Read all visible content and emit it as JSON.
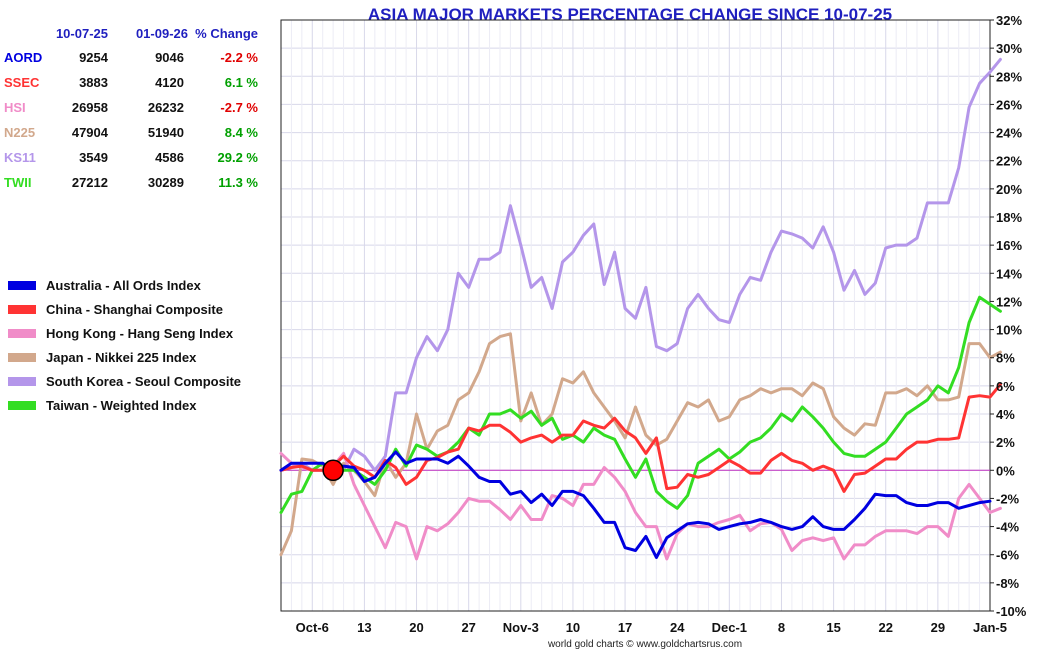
{
  "chart_data": {
    "type": "line",
    "title": "ASIA MAJOR MARKETS PERCENTAGE CHANGE SINCE 10-07-25",
    "credit": "world gold charts © www.goldchartsrus.com",
    "ylim": [
      -10,
      32
    ],
    "y_tick_labels": [
      "-10%",
      "-8%",
      "-6%",
      "-4%",
      "-2%",
      "0%",
      "2%",
      "4%",
      "6%",
      "8%",
      "10%",
      "12%",
      "14%",
      "16%",
      "18%",
      "20%",
      "22%",
      "24%",
      "26%",
      "28%",
      "30%",
      "32%"
    ],
    "x_tick_labels": [
      "Oct-6",
      "13",
      "20",
      "27",
      "Nov-3",
      "10",
      "17",
      "24",
      "Dec-1",
      "8",
      "15",
      "22",
      "29",
      "Jan-5"
    ],
    "grid": true,
    "zero_line_color": "#c030c0",
    "marker": {
      "x": 5,
      "y": 0,
      "color": "#ff0000"
    },
    "table": {
      "headers": [
        "10-07-25",
        "01-09-26",
        "% Change"
      ],
      "rows": [
        {
          "label": "AORD",
          "start": "9254",
          "end": "9046",
          "change": "-2.2 %",
          "color": "#0000e0",
          "change_color": "#e00000"
        },
        {
          "label": "SSEC",
          "start": "3883",
          "end": "4120",
          "change": "6.1 %",
          "color": "#ff3333",
          "change_color": "#00a000"
        },
        {
          "label": "HSI",
          "start": "26958",
          "end": "26232",
          "change": "-2.7 %",
          "color": "#f08cc8",
          "change_color": "#e00000"
        },
        {
          "label": "N225",
          "start": "47904",
          "end": "51940",
          "change": "8.4 %",
          "color": "#d2a88c",
          "change_color": "#00a000"
        },
        {
          "label": "KS11",
          "start": "3549",
          "end": "4586",
          "change": "29.2 %",
          "color": "#b496ea",
          "change_color": "#00a000"
        },
        {
          "label": "TWII",
          "start": "27212",
          "end": "30289",
          "change": "11.3 %",
          "color": "#33dd22",
          "change_color": "#00a000"
        }
      ]
    },
    "legend_position": "left",
    "series": [
      {
        "name": "Australia - All Ords Index",
        "color": "#0000e0",
        "values": [
          0,
          0.5,
          0.5,
          0.5,
          0.5,
          0,
          0.3,
          0.2,
          -0.8,
          -0.5,
          0.5,
          1.3,
          0.5,
          0.8,
          0.8,
          0.8,
          0.5,
          1.0,
          0.3,
          -0.5,
          -0.8,
          -0.8,
          -1.7,
          -1.5,
          -2.3,
          -1.7,
          -2.5,
          -1.5,
          -1.5,
          -1.8,
          -2.7,
          -3.7,
          -3.7,
          -5.5,
          -5.7,
          -4.7,
          -6.2,
          -4.8,
          -4.3,
          -3.8,
          -3.7,
          -3.8,
          -4.2,
          -4.0,
          -3.8,
          -3.7,
          -3.5,
          -3.7,
          -4.0,
          -4.2,
          -4.0,
          -3.3,
          -4.0,
          -4.2,
          -4.2,
          -3.5,
          -2.7,
          -1.7,
          -1.8,
          -1.8,
          -2.3,
          -2.5,
          -2.5,
          -2.3,
          -2.3,
          -2.7,
          -2.5,
          -2.3,
          -2.2
        ]
      },
      {
        "name": "China - Shanghai Composite",
        "color": "#ff3333",
        "values": [
          0,
          0.2,
          0.3,
          0,
          0,
          0.3,
          1.0,
          0.3,
          0,
          -0.5,
          0.7,
          0.2,
          -1.0,
          -0.5,
          0.7,
          0.9,
          1.3,
          1.5,
          3.0,
          2.8,
          3.2,
          3.2,
          2.7,
          2.0,
          2.3,
          2.5,
          2.0,
          2.5,
          2.5,
          3.5,
          3.2,
          3.0,
          3.7,
          2.8,
          2.3,
          1.2,
          2.3,
          -1.3,
          -1.2,
          -0.3,
          -0.5,
          -0.3,
          0.2,
          0.7,
          0.3,
          -0.2,
          -0.2,
          0.7,
          1.2,
          0.7,
          0.5,
          0,
          0.3,
          0,
          -1.5,
          -0.3,
          -0.2,
          0.3,
          0.8,
          0.8,
          1.5,
          2.0,
          2.0,
          2.2,
          2.2,
          2.3,
          5.2,
          5.3,
          5.2,
          6.1
        ]
      },
      {
        "name": "Hong Kong - Hang Seng Index",
        "color": "#f08cc8",
        "values": [
          1.2,
          0.5,
          0.2,
          0,
          0,
          0.3,
          1.2,
          -1.0,
          -2.5,
          -4.0,
          -5.5,
          -3.7,
          -4.0,
          -6.3,
          -4.0,
          -4.3,
          -3.8,
          -3.0,
          -2.0,
          -2.2,
          -2.2,
          -2.8,
          -3.5,
          -2.5,
          -3.5,
          -3.5,
          -1.8,
          -2.0,
          -2.5,
          -1.0,
          -1.0,
          0.2,
          -0.5,
          -1.5,
          -3.0,
          -4.0,
          -4.0,
          -6.3,
          -4.5,
          -3.8,
          -4.0,
          -4.0,
          -3.7,
          -3.5,
          -3.2,
          -4.3,
          -3.8,
          -3.7,
          -4.2,
          -5.7,
          -5.0,
          -4.8,
          -5.0,
          -4.8,
          -6.3,
          -5.3,
          -5.3,
          -4.7,
          -4.3,
          -4.3,
          -4.3,
          -4.5,
          -4.0,
          -4.0,
          -4.7,
          -2.0,
          -1.0,
          -2.0,
          -3.0,
          -2.7
        ]
      },
      {
        "name": "Japan - Nikkei 225 Index",
        "color": "#d2a88c",
        "values": [
          -6,
          -4.3,
          0.8,
          0.7,
          0.3,
          -1.0,
          0.5,
          0,
          -0.8,
          -1.8,
          0.7,
          -0.5,
          0.5,
          4.0,
          1.5,
          2.8,
          3.2,
          5.0,
          5.5,
          7.0,
          9.0,
          9.5,
          9.7,
          3.5,
          5.5,
          3.2,
          4.0,
          6.5,
          6.2,
          7.0,
          5.5,
          4.5,
          3.5,
          2.3,
          4.5,
          2.5,
          1.8,
          2.2,
          3.5,
          4.8,
          4.5,
          5.0,
          3.5,
          3.8,
          5.0,
          5.3,
          5.8,
          5.5,
          5.8,
          5.8,
          5.3,
          6.2,
          5.8,
          3.8,
          3.0,
          2.5,
          3.3,
          3.2,
          5.5,
          5.5,
          5.8,
          5.3,
          6.0,
          5.0,
          5.0,
          5.2,
          9.0,
          9.0,
          8.0,
          8.4
        ]
      },
      {
        "name": "South Korea - Seoul Composite",
        "color": "#b496ea",
        "values": [
          0,
          0.2,
          0.5,
          0,
          0,
          0.5,
          0,
          1.5,
          1.0,
          0,
          1.0,
          5.5,
          5.5,
          8.0,
          9.5,
          8.5,
          10.0,
          14.0,
          13.0,
          15.0,
          15.0,
          15.5,
          18.8,
          16.0,
          13.0,
          13.7,
          11.5,
          14.8,
          15.5,
          16.7,
          17.5,
          13.2,
          15.5,
          11.5,
          10.8,
          13.0,
          8.8,
          8.5,
          9.0,
          11.5,
          12.5,
          11.5,
          10.7,
          10.5,
          12.5,
          13.7,
          13.5,
          15.5,
          17.0,
          16.8,
          16.5,
          15.8,
          17.3,
          15.5,
          12.8,
          14.2,
          12.5,
          13.3,
          15.8,
          16.0,
          16.0,
          16.5,
          19.0,
          19.0,
          19.0,
          21.5,
          25.8,
          27.5,
          28.3,
          29.2
        ]
      },
      {
        "name": "Taiwan - Weighted Index",
        "color": "#33dd22",
        "values": [
          -3.0,
          -1.7,
          -1.5,
          0,
          0.5,
          -0.3,
          0,
          0,
          -0.5,
          -1.0,
          0,
          1.5,
          0.3,
          1.8,
          1.5,
          1.0,
          1.3,
          2.0,
          3.0,
          2.5,
          4.0,
          4.0,
          4.3,
          3.7,
          4.2,
          3.2,
          3.7,
          2.2,
          2.5,
          2.0,
          3.0,
          2.5,
          2.2,
          0.8,
          -0.5,
          0.8,
          -1.5,
          -2.2,
          -2.7,
          -1.8,
          0.5,
          1.0,
          1.5,
          0.8,
          1.3,
          2.0,
          2.3,
          3.0,
          4.0,
          3.5,
          4.5,
          3.8,
          3.0,
          2.0,
          1.2,
          1.0,
          1.0,
          1.5,
          2.0,
          3.0,
          4.0,
          4.5,
          5.0,
          6.0,
          5.5,
          7.3,
          10.5,
          12.3,
          11.8,
          11.3
        ]
      }
    ]
  }
}
